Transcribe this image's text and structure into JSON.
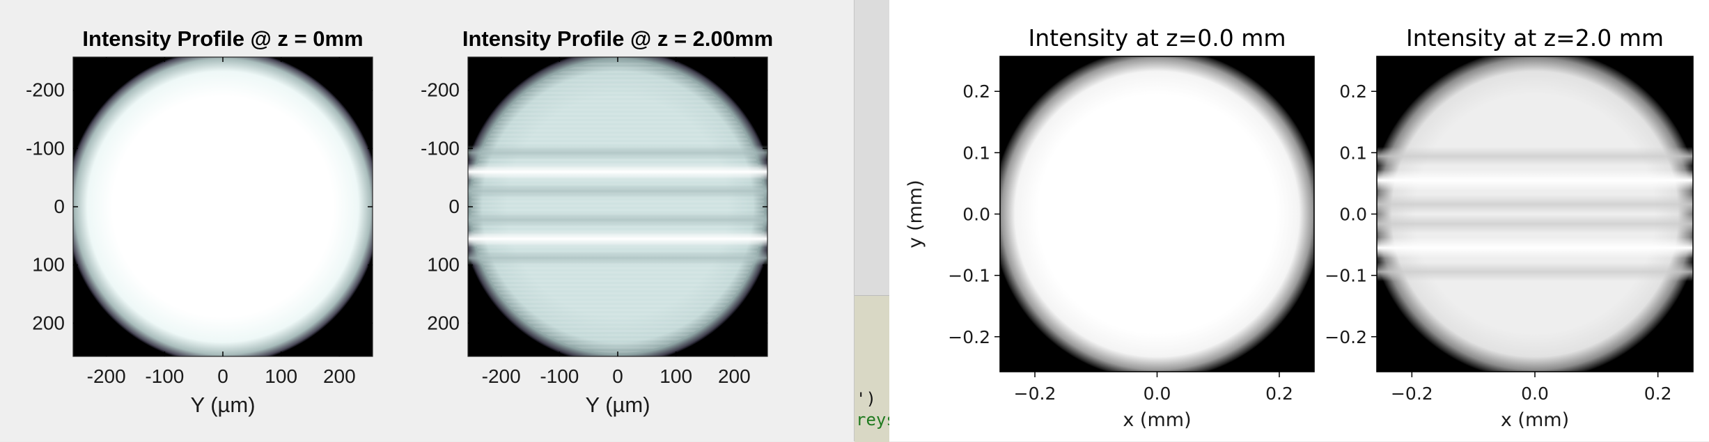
{
  "window": {
    "code_fragment": {
      "line1": "')",
      "line2": "reys"
    }
  },
  "chart_data": [
    {
      "type": "heatmap",
      "title": "Intensity Profile @ z = 0mm",
      "xlabel": "Y (µm)",
      "ylabel": "",
      "xlim": [
        -257,
        257
      ],
      "ylim": [
        -257,
        257
      ],
      "y_direction": "reversed",
      "xticks": [
        -200,
        -100,
        0,
        100,
        200
      ],
      "yticks": [
        -200,
        -100,
        0,
        100,
        200
      ],
      "xtick_labels": [
        "-200",
        "-100",
        "0",
        "100",
        "200"
      ],
      "ytick_labels": [
        "-200",
        "-100",
        "0",
        "100",
        "200"
      ],
      "colormap": "bone",
      "beam_radius": 255,
      "fringes": []
    },
    {
      "type": "heatmap",
      "title": "Intensity Profile @ z = 2.00mm",
      "xlabel": "Y (µm)",
      "ylabel": "",
      "xlim": [
        -257,
        257
      ],
      "ylim": [
        -257,
        257
      ],
      "y_direction": "reversed",
      "xticks": [
        -200,
        -100,
        0,
        100,
        200
      ],
      "yticks": [
        -200,
        -100,
        0,
        100,
        200
      ],
      "xtick_labels": [
        "-200",
        "-100",
        "0",
        "100",
        "200"
      ],
      "ytick_labels": [
        "-200",
        "-100",
        "0",
        "100",
        "200"
      ],
      "colormap": "bone",
      "beam_radius": 255,
      "fringes": [
        -60,
        55
      ]
    },
    {
      "type": "heatmap",
      "title": "Intensity at z=0.0 mm",
      "xlabel": "x (mm)",
      "ylabel": "y (mm)",
      "xlim": [
        -0.257,
        0.257
      ],
      "ylim": [
        -0.257,
        0.257
      ],
      "y_direction": "normal",
      "xticks": [
        -0.2,
        0.0,
        0.2
      ],
      "yticks": [
        0.2,
        0.1,
        0.0,
        -0.1,
        -0.2
      ],
      "xtick_labels": [
        "−0.2",
        "0.0",
        "0.2"
      ],
      "ytick_labels": [
        "0.2",
        "0.1",
        "0.0",
        "−0.1",
        "−0.2"
      ],
      "colormap": "gray",
      "beam_radius": 0.255,
      "fringes": []
    },
    {
      "type": "heatmap",
      "title": "Intensity at z=2.0 mm",
      "xlabel": "x (mm)",
      "ylabel": "",
      "xlim": [
        -0.257,
        0.257
      ],
      "ylim": [
        -0.257,
        0.257
      ],
      "y_direction": "normal",
      "xticks": [
        -0.2,
        0.0,
        0.2
      ],
      "yticks": [
        0.2,
        0.1,
        0.0,
        -0.1,
        -0.2
      ],
      "xtick_labels": [
        "−0.2",
        "0.0",
        "0.2"
      ],
      "ytick_labels": [
        "0.2",
        "0.1",
        "0.0",
        "−0.1",
        "−0.2"
      ],
      "colormap": "gray",
      "beam_radius": 0.255,
      "fringes": [
        0.055,
        -0.055
      ]
    }
  ]
}
